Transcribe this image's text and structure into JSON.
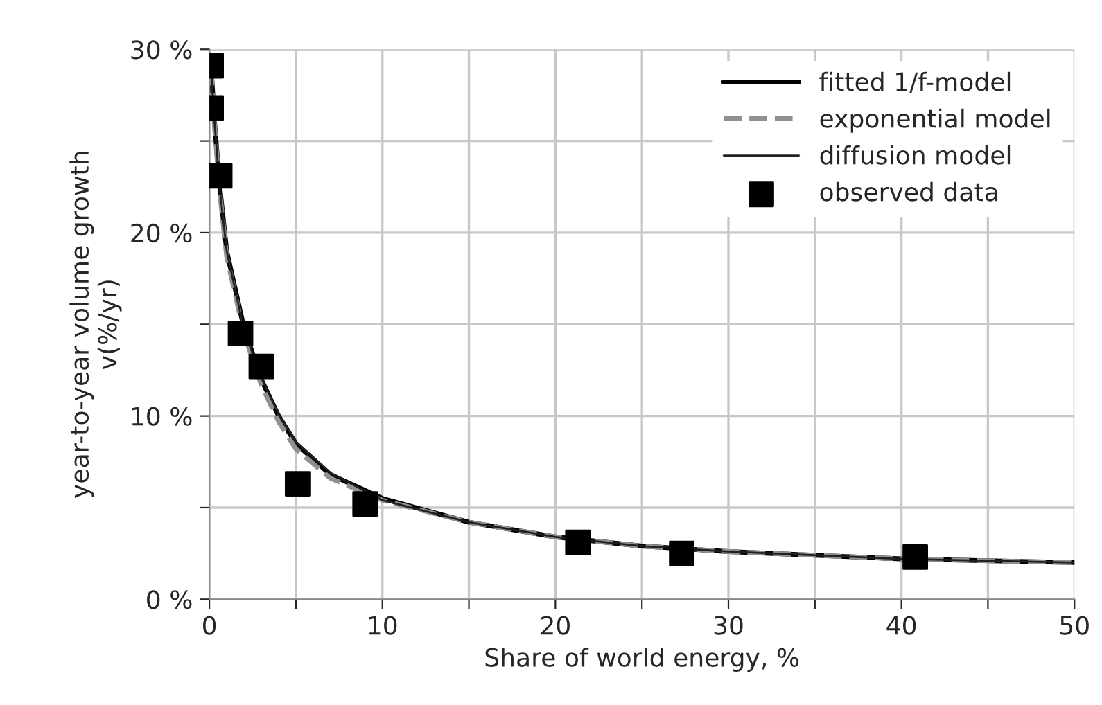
{
  "chart_data": {
    "type": "line",
    "xlabel": "Share of world energy, %",
    "ylabel": "year-to-year volume growth\nv(%/yr)",
    "xlim": [
      0,
      50
    ],
    "ylim": [
      0,
      30
    ],
    "xticks": [
      0,
      {
        "value": 5,
        "label": null
      },
      10,
      {
        "value": 15,
        "label": null
      },
      20,
      {
        "value": 25,
        "label": null
      },
      30,
      {
        "value": 35,
        "label": null
      },
      40,
      {
        "value": 45,
        "label": null
      },
      50
    ],
    "yticks": [
      {
        "value": 0,
        "label": "0 %"
      },
      {
        "value": 5,
        "label": null
      },
      {
        "value": 10,
        "label": "10 %"
      },
      {
        "value": 15,
        "label": null
      },
      {
        "value": 20,
        "label": "20 %"
      },
      {
        "value": 25,
        "label": null
      },
      {
        "value": 30,
        "label": "30 %"
      }
    ],
    "grid": true,
    "legend": "top right",
    "series": [
      {
        "name": "fitted 1/f-model",
        "color": "#000000",
        "line_style": "solid",
        "x": [
          0.1,
          0.3,
          0.6,
          1,
          2,
          3,
          4,
          5,
          7,
          10,
          15,
          20,
          25,
          30,
          40,
          50
        ],
        "values": [
          29,
          26,
          22.5,
          19,
          14.8,
          12,
          10,
          8.5,
          6.8,
          5.5,
          4.2,
          3.4,
          2.9,
          2.6,
          2.2,
          2.0
        ]
      },
      {
        "name": "exponential model",
        "color": "#909090",
        "line_style": "dashed",
        "x": [
          0.1,
          0.3,
          0.6,
          1,
          2,
          3,
          4,
          5,
          7,
          10,
          15,
          20,
          25,
          30,
          40,
          50
        ],
        "values": [
          29,
          25.8,
          22.2,
          18.7,
          14.5,
          11.7,
          9.7,
          8.2,
          6.6,
          5.4,
          4.2,
          3.4,
          2.9,
          2.6,
          2.2,
          2.0
        ]
      },
      {
        "name": "diffusion model",
        "color": "#202020",
        "line_style": "solid",
        "x": [
          0.1,
          0.3,
          0.6,
          1,
          2,
          3,
          4,
          5,
          7,
          10,
          15,
          20,
          25,
          30,
          40,
          50
        ],
        "values": [
          29,
          26,
          22.4,
          19,
          14.7,
          12.1,
          10.1,
          8.6,
          6.9,
          5.4,
          4.2,
          3.4,
          2.9,
          2.6,
          2.2,
          2.0
        ]
      },
      {
        "name": "observed data",
        "type": "scatter",
        "marker": "square",
        "color": "#000000",
        "x": [
          0.1,
          0.1,
          0.6,
          1.8,
          3.0,
          5.1,
          9.0,
          21.3,
          27.3,
          40.8
        ],
        "values": [
          29.1,
          26.8,
          23.1,
          14.5,
          12.7,
          6.3,
          5.2,
          3.1,
          2.5,
          2.3
        ]
      }
    ]
  }
}
